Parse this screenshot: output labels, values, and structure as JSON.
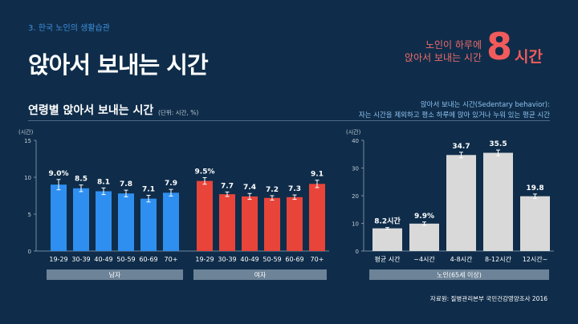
{
  "section_label": "3. 한국 노인의 생활습관",
  "page_title": "앉아서 보내는 시간",
  "highlight": {
    "line1": "노인이 하루에",
    "line2": "앉아서 보내는 시간",
    "value": "8",
    "unit": "시간"
  },
  "subtitle": "연령별 앉아서 보내는 시간",
  "subtitle_note": "(단위: 시간, %)",
  "definition_line1": "앉아서 보내는 시간(Sedentary behavior):",
  "definition_line2": "자는 시간을 제외하고 평소 하루에 앉아 있거나 누워 있는 평균 시간",
  "source": "자료원: 질병관리본부 국민건강영양조사 2016",
  "colors": {
    "male": "#2e8ff0",
    "female": "#e8443a",
    "elderly": "#d9d9d9",
    "background": "#0f2d4a",
    "group_band": "#6d8397"
  },
  "chart_data": [
    {
      "type": "bar",
      "unit_label": "(시간)",
      "ylim": [
        0,
        15
      ],
      "yticks": [
        0,
        5,
        10,
        15
      ],
      "group_labels": [
        "남자",
        "여자"
      ],
      "series": [
        {
          "name": "남자",
          "categories": [
            "19-29",
            "30-39",
            "40-49",
            "50-59",
            "60-69",
            "70+"
          ],
          "values": [
            9.0,
            8.5,
            8.1,
            7.8,
            7.1,
            7.9
          ],
          "value_labels": [
            "9.0%",
            "8.5",
            "8.1",
            "7.8",
            "7.1",
            "7.9"
          ],
          "errors": [
            0.7,
            0.45,
            0.45,
            0.45,
            0.45,
            0.45
          ]
        },
        {
          "name": "여자",
          "categories": [
            "19-29",
            "30-39",
            "40-49",
            "50-59",
            "60-69",
            "70+"
          ],
          "values": [
            9.5,
            7.7,
            7.4,
            7.2,
            7.3,
            9.1
          ],
          "value_labels": [
            "9.5%",
            "7.7",
            "7.4",
            "7.2",
            "7.3",
            "9.1"
          ],
          "errors": [
            0.45,
            0.3,
            0.4,
            0.3,
            0.3,
            0.5
          ]
        }
      ]
    },
    {
      "type": "bar",
      "unit_label": "(시간)",
      "ylim": [
        0,
        40
      ],
      "yticks": [
        0,
        10,
        20,
        30,
        40
      ],
      "group_label": "노인(65세 이상)",
      "categories": [
        "평균 시간",
        "~4시간",
        "4-8시간",
        "8-12시간",
        "12시간~"
      ],
      "values": [
        8.2,
        9.9,
        34.7,
        35.5,
        19.8
      ],
      "value_labels": [
        "8.2시간",
        "9.9%",
        "34.7",
        "35.5",
        "19.8"
      ],
      "errors": [
        0.3,
        0.6,
        1.0,
        1.0,
        0.8
      ]
    }
  ]
}
